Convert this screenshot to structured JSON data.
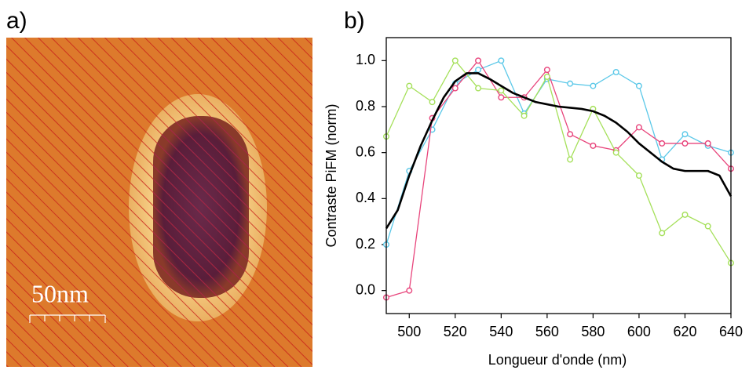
{
  "image_panel": {
    "label": "a)",
    "scale_bar": "50nm"
  },
  "chart_data": {
    "type": "line",
    "label": "b)",
    "xlabel": "Longueur d'onde (nm)",
    "ylabel": "Contraste PiFM (norm)",
    "xlim": [
      490,
      640
    ],
    "xticks": [
      500,
      520,
      540,
      560,
      580,
      600,
      620,
      640
    ],
    "ylim": [
      -0.1,
      1.1
    ],
    "yticks": [
      {
        "value": 0,
        "label": "0.0"
      },
      0.2,
      0.4,
      0.6,
      0.8,
      {
        "value": 1,
        "label": "1.0"
      }
    ],
    "series": [
      {
        "color": "#5bc8e8",
        "markers": true,
        "x": [
          490,
          500,
          510,
          520,
          530,
          540,
          550,
          560,
          570,
          580,
          590,
          600,
          610,
          620,
          630,
          640
        ],
        "values": [
          0.2,
          0.52,
          0.7,
          0.9,
          0.96,
          1.0,
          0.77,
          0.92,
          0.9,
          0.89,
          0.95,
          0.89,
          0.57,
          0.68,
          0.63,
          0.6
        ]
      },
      {
        "color": "#e8457c",
        "markers": true,
        "x": [
          490,
          500,
          510,
          520,
          530,
          540,
          550,
          560,
          570,
          580,
          590,
          600,
          610,
          620,
          630,
          640
        ],
        "values": [
          -0.03,
          0.0,
          0.75,
          0.88,
          1.0,
          0.84,
          0.84,
          0.96,
          0.68,
          0.63,
          0.61,
          0.71,
          0.64,
          0.64,
          0.64,
          0.53
        ]
      },
      {
        "color": "#a5e05a",
        "markers": true,
        "x": [
          490,
          500,
          510,
          520,
          530,
          540,
          550,
          560,
          570,
          580,
          590,
          600,
          610,
          620,
          630,
          640
        ],
        "values": [
          0.67,
          0.89,
          0.82,
          1.0,
          0.88,
          0.87,
          0.76,
          0.93,
          0.57,
          0.79,
          0.6,
          0.5,
          0.25,
          0.33,
          0.28,
          0.12
        ]
      },
      {
        "color": "#000000",
        "markers": false,
        "x": [
          490,
          495,
          500,
          505,
          510,
          515,
          520,
          525,
          530,
          535,
          540,
          545,
          550,
          555,
          560,
          565,
          570,
          575,
          580,
          585,
          590,
          595,
          600,
          605,
          610,
          615,
          620,
          625,
          630,
          635,
          640
        ],
        "values": [
          0.27,
          0.35,
          0.5,
          0.63,
          0.74,
          0.84,
          0.91,
          0.945,
          0.945,
          0.92,
          0.89,
          0.86,
          0.84,
          0.82,
          0.81,
          0.8,
          0.795,
          0.79,
          0.78,
          0.76,
          0.73,
          0.69,
          0.64,
          0.6,
          0.56,
          0.53,
          0.52,
          0.52,
          0.52,
          0.5,
          0.41
        ]
      }
    ]
  }
}
